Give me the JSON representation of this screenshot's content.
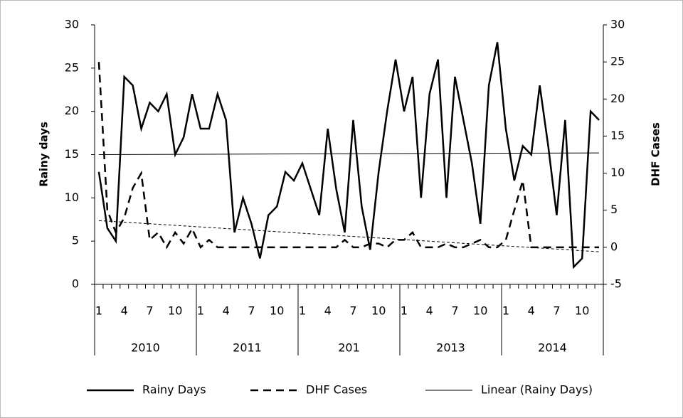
{
  "chart_data": {
    "type": "line",
    "y_label": "Rainy days",
    "y2_label": "DHF Cases",
    "categories": [
      "1",
      null,
      null,
      "4",
      null,
      null,
      "7",
      null,
      null,
      "10",
      null,
      null,
      "1",
      null,
      null,
      "4",
      null,
      null,
      "7",
      null,
      null,
      "10",
      null,
      null,
      "1",
      null,
      null,
      "4",
      null,
      null,
      "7",
      null,
      null,
      "10",
      null,
      null,
      "1",
      null,
      null,
      "4",
      null,
      null,
      "7",
      null,
      null,
      "10",
      null,
      null,
      "1",
      null,
      null,
      "4",
      null,
      null,
      "7",
      null,
      null,
      "10",
      null,
      null
    ],
    "groups": [
      "2010",
      "2011",
      "201",
      "2013",
      "2014"
    ],
    "series": [
      {
        "name": "Rainy Days",
        "color": "#000000",
        "axis": "y",
        "dash": "solid",
        "values": [
          13,
          6.5,
          5,
          24,
          23,
          18,
          21,
          20,
          22,
          15,
          17,
          22,
          18,
          18,
          22,
          19,
          6,
          10,
          7,
          3,
          8,
          9,
          13,
          12,
          14,
          11,
          8,
          18,
          11,
          6,
          19,
          9,
          4,
          13,
          20,
          26,
          20,
          24,
          10,
          22,
          26,
          10,
          24,
          19,
          14,
          7,
          23,
          28,
          18,
          12,
          16,
          15,
          23,
          16,
          8,
          19,
          2,
          3,
          20,
          19
        ]
      },
      {
        "name": "DHF Cases",
        "color": "#000000",
        "axis": "y2",
        "dash": "dashed",
        "values": [
          25,
          5,
          2,
          4,
          8,
          10,
          1,
          2,
          0,
          2,
          0.5,
          2.5,
          0,
          1,
          0,
          0,
          0,
          0,
          0,
          0,
          0,
          0,
          0,
          0,
          0,
          0,
          0,
          0,
          0,
          1,
          0,
          0,
          0.5,
          0.5,
          0,
          1,
          1,
          2,
          0,
          0,
          0,
          0.5,
          0,
          0,
          0.5,
          1,
          0,
          0,
          1,
          5,
          9,
          0,
          0,
          0,
          0,
          0,
          0,
          0,
          0,
          0
        ]
      }
    ],
    "trendlines": [
      {
        "name": "Linear (Rainy Days)",
        "color": "#000000",
        "axis": "y",
        "values": [
          15,
          15.2
        ]
      },
      {
        "color": "#000000",
        "axis": "y2",
        "values": [
          3.6,
          -0.6
        ]
      }
    ],
    "ylim": [
      0,
      30
    ],
    "yticks": [
      0,
      5,
      10,
      15,
      20,
      25,
      30
    ],
    "y2lim": [
      -5,
      30
    ],
    "y2ticks": [
      -5,
      0,
      5,
      10,
      15,
      20,
      25,
      30
    ],
    "legend": "bottom"
  }
}
